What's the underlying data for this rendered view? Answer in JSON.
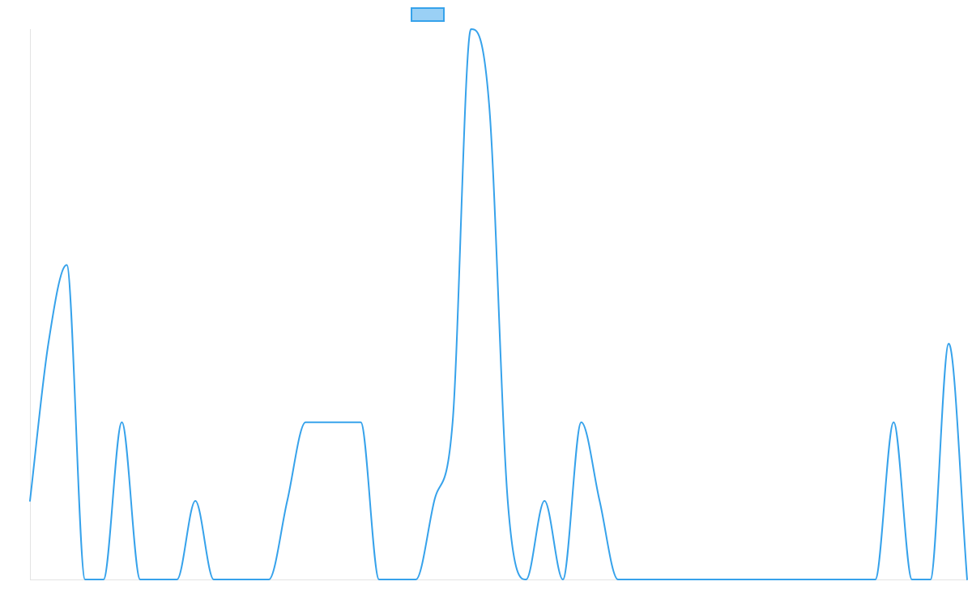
{
  "chart_data": {
    "type": "line",
    "title": "",
    "xlabel": "",
    "ylabel": "",
    "x": [
      0,
      1,
      2,
      3,
      4,
      5,
      6,
      7,
      8,
      9,
      10,
      11,
      12,
      13,
      14,
      15,
      16,
      17,
      18,
      19,
      20,
      21,
      22,
      23,
      24,
      25,
      26,
      27,
      28,
      29,
      30,
      31,
      32,
      33,
      34,
      35,
      36,
      37,
      38,
      39,
      40,
      41,
      42,
      43,
      44,
      45,
      46,
      47,
      48,
      49,
      50,
      51
    ],
    "ylim": [
      0,
      7
    ],
    "grid": false,
    "legend": "top-center",
    "series": [
      {
        "name": "",
        "color": "#36a2eb",
        "fill": "#9ad0f5",
        "values": [
          1,
          3,
          4,
          0,
          0,
          2,
          0,
          0,
          0,
          1,
          0,
          0,
          0,
          0,
          1,
          2,
          2,
          2,
          2,
          0,
          0,
          0,
          1,
          2,
          7,
          6,
          1,
          0,
          1,
          0,
          2,
          1,
          0,
          0,
          0,
          0,
          0,
          0,
          0,
          0,
          0,
          0,
          0,
          0,
          0,
          0,
          0,
          2,
          0,
          0,
          3,
          0
        ]
      }
    ]
  }
}
